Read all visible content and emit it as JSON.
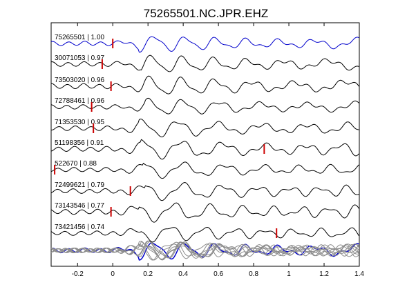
{
  "chart_data": {
    "type": "line",
    "title": "75265501.NC.JPR.EHZ",
    "xlabel": "",
    "ylabel": "",
    "xlim": [
      -0.35,
      1.4
    ],
    "xticks": [
      -0.2,
      0,
      0.2,
      0.4,
      0.6,
      0.8,
      1,
      1.2,
      1.4
    ],
    "xtick_labels": [
      "-0.2",
      "0",
      "0.2",
      "0.4",
      "0.6",
      "0.8",
      "1",
      "1.2",
      "1.4"
    ],
    "grid": false,
    "colors": {
      "reference": "#0000cc",
      "trace": "#000000",
      "pick": "#cc0000",
      "overlay": "#8c8c8c"
    },
    "series": [
      {
        "label": "75265501 | 1.00",
        "color": "#0000cc",
        "pick_time": 0.0
      },
      {
        "label": "30071053 | 0.97",
        "color": "#000000",
        "pick_time": -0.06
      },
      {
        "label": "73503020 | 0.96",
        "color": "#000000",
        "pick_time": -0.01
      },
      {
        "label": "72788461 | 0.96",
        "color": "#000000",
        "pick_time": -0.12
      },
      {
        "label": "71353530 | 0.95",
        "color": "#000000",
        "pick_time": -0.11
      },
      {
        "label": "51198356 | 0.91",
        "color": "#000000",
        "pick_time": 0.86
      },
      {
        "label": "522670 | 0.88",
        "color": "#000000",
        "pick_time": -0.33
      },
      {
        "label": "72499621 | 0.79",
        "color": "#000000",
        "pick_time": 0.1
      },
      {
        "label": "73143546 | 0.77",
        "color": "#000000",
        "pick_time": -0.01
      },
      {
        "label": "73421456 | 0.74",
        "color": "#000000",
        "pick_time": 0.93
      }
    ]
  }
}
